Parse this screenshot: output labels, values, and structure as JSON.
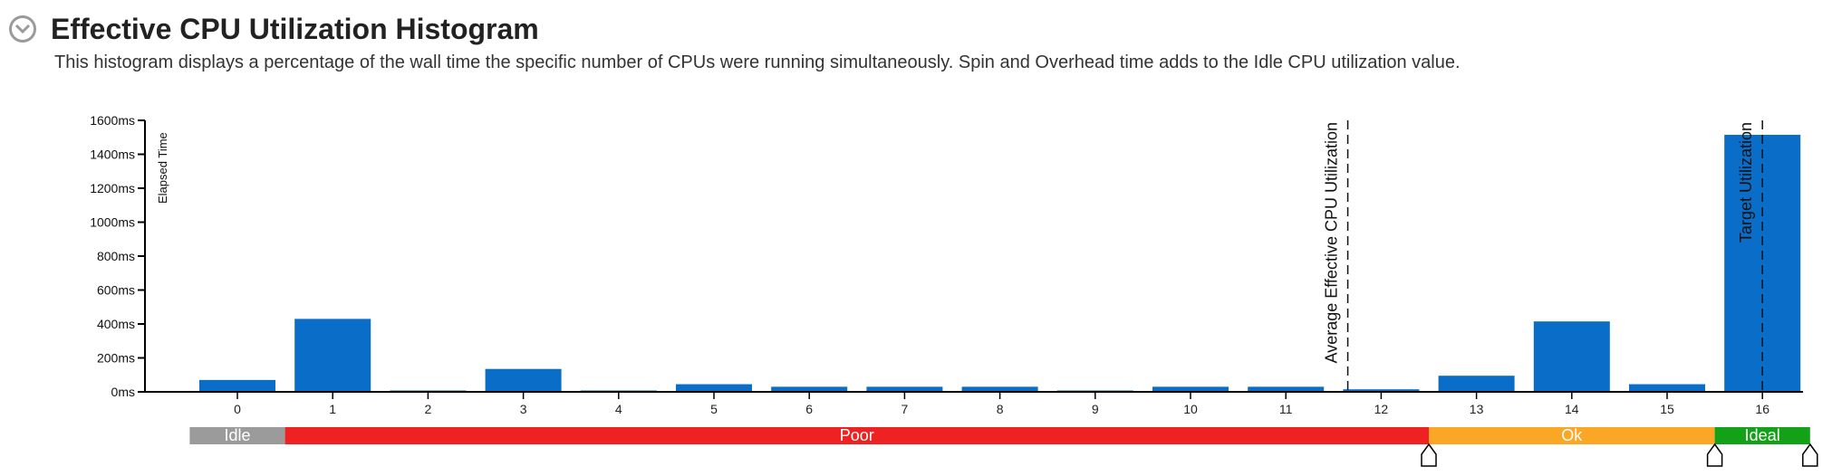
{
  "header": {
    "title": "Effective CPU Utilization Histogram",
    "description": "This histogram displays a percentage of the wall time the specific number of CPUs were running simultaneously. Spin and Overhead time adds to the Idle CPU utilization value.",
    "collapse_icon": "chevron-down-icon"
  },
  "chart_data": {
    "type": "bar",
    "ylabel": "Elapsed Time",
    "xlabel": "",
    "unit": "ms",
    "ylim": [
      0,
      1600
    ],
    "yticks": [
      "0ms",
      "200ms",
      "400ms",
      "600ms",
      "800ms",
      "1000ms",
      "1200ms",
      "1400ms",
      "1600ms"
    ],
    "categories": [
      "0",
      "1",
      "2",
      "3",
      "4",
      "5",
      "6",
      "7",
      "8",
      "9",
      "10",
      "11",
      "12",
      "13",
      "14",
      "15",
      "16"
    ],
    "values": [
      70,
      430,
      8,
      135,
      8,
      45,
      30,
      30,
      30,
      8,
      30,
      30,
      15,
      95,
      415,
      45,
      1515
    ],
    "bar_color": "#0a6ec8",
    "reference_lines": [
      {
        "label": "Average Effective CPU Utilization",
        "x": 11.65
      },
      {
        "label": "Target Utilization",
        "x": 16
      }
    ],
    "utilization_bands": [
      {
        "label": "Idle",
        "from": -0.5,
        "to": 0.5,
        "color": "#9b9b9b"
      },
      {
        "label": "Poor",
        "from": 0.5,
        "to": 12.5,
        "color": "#ee2222"
      },
      {
        "label": "Ok",
        "from": 12.5,
        "to": 15.5,
        "color": "#f9a725"
      },
      {
        "label": "Ideal",
        "from": 15.5,
        "to": 16.5,
        "color": "#13a117"
      }
    ],
    "band_handles": [
      12.5,
      15.5,
      16.5
    ],
    "grid": false,
    "legend": "none"
  }
}
